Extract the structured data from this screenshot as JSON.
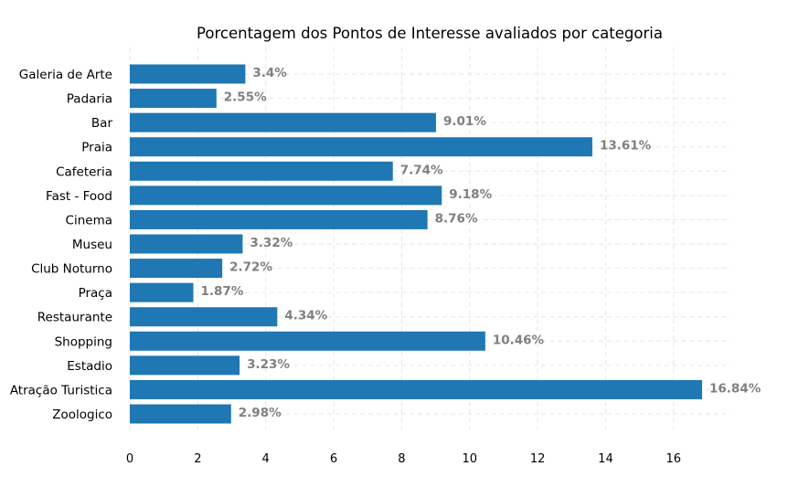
{
  "chart_data": {
    "type": "bar",
    "orientation": "horizontal",
    "title": "Porcentagem dos Pontos de Interesse avaliados por categoria",
    "xlabel": "",
    "ylabel": "",
    "xlim": [
      0,
      17.7
    ],
    "xticks": [
      0,
      2,
      4,
      6,
      8,
      10,
      12,
      14,
      16
    ],
    "grid": true,
    "bar_color": "#1f77b4",
    "value_label_color": "#808080",
    "categories": [
      "Galeria de Arte",
      "Padaria",
      "Bar",
      "Praia",
      "Cafeteria",
      "Fast - Food",
      "Cinema",
      "Museu",
      "Club Noturno",
      "Praça",
      "Restaurante",
      "Shopping",
      "Estadio",
      "Atração Turistica",
      "Zoologico"
    ],
    "values": [
      3.4,
      2.55,
      9.01,
      13.61,
      7.74,
      9.18,
      8.76,
      3.32,
      2.72,
      1.87,
      4.34,
      10.46,
      3.23,
      16.84,
      2.98
    ],
    "value_labels": [
      "3.4%",
      "2.55%",
      "9.01%",
      "13.61%",
      "7.74%",
      "9.18%",
      "8.76%",
      "3.32%",
      "2.72%",
      "1.87%",
      "4.34%",
      "10.46%",
      "3.23%",
      "16.84%",
      "2.98%"
    ]
  }
}
